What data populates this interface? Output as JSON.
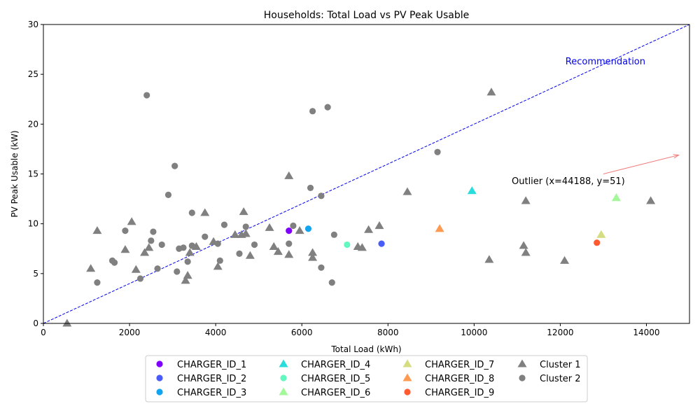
{
  "chart_data": {
    "type": "scatter",
    "title": "Households: Total Load vs PV Peak Usable",
    "xlabel": "Total Load (kWh)",
    "ylabel": "PV Peak Usable (kW)",
    "xlim": [
      0,
      15000
    ],
    "ylim": [
      0,
      30
    ],
    "x_ticks": [
      0,
      2000,
      4000,
      6000,
      8000,
      10000,
      12000,
      14000
    ],
    "y_ticks": [
      0,
      5,
      10,
      15,
      20,
      25,
      30
    ],
    "grid": false,
    "legend_position": "bottom-center",
    "reference_line": {
      "label": "Recommendation",
      "points": [
        [
          0,
          0
        ],
        [
          15000,
          30
        ]
      ],
      "color": "#0000ee"
    },
    "annotation": {
      "text": "Outlier (x=44188, y=51)",
      "anchor": [
        13000,
        15
      ],
      "arrow_to": [
        14750,
        16.9
      ],
      "color": "#f08080"
    },
    "series": [
      {
        "name": "CHARGER_ID_1",
        "marker": "circle",
        "color": "#8000ff",
        "points": [
          [
            5700,
            9.3
          ]
        ]
      },
      {
        "name": "CHARGER_ID_2",
        "marker": "circle",
        "color": "#4a5cf8",
        "points": [
          [
            7850,
            8.0
          ]
        ]
      },
      {
        "name": "CHARGER_ID_3",
        "marker": "circle",
        "color": "#12a4ee",
        "points": [
          [
            6150,
            9.5
          ]
        ]
      },
      {
        "name": "CHARGER_ID_4",
        "marker": "triangle",
        "color": "#2adddd",
        "points": [
          [
            9950,
            13.3
          ]
        ]
      },
      {
        "name": "CHARGER_ID_5",
        "marker": "circle",
        "color": "#62f8c0",
        "points": [
          [
            7050,
            7.9
          ]
        ]
      },
      {
        "name": "CHARGER_ID_6",
        "marker": "triangle",
        "color": "#a4f89a",
        "points": [
          [
            13300,
            12.6
          ]
        ]
      },
      {
        "name": "CHARGER_ID_7",
        "marker": "triangle",
        "color": "#d4dd80",
        "points": [
          [
            12950,
            8.9
          ]
        ]
      },
      {
        "name": "CHARGER_ID_8",
        "marker": "triangle",
        "color": "#ff9a52",
        "points": [
          [
            9200,
            9.5
          ]
        ]
      },
      {
        "name": "CHARGER_ID_9",
        "marker": "circle",
        "color": "#ff5a30",
        "points": [
          [
            12850,
            8.1
          ]
        ]
      },
      {
        "name": "Cluster 1",
        "marker": "triangle",
        "color": "#808080",
        "points": [
          [
            550,
            0
          ],
          [
            1100,
            5.5
          ],
          [
            1250,
            9.3
          ],
          [
            1900,
            7.4
          ],
          [
            2050,
            10.2
          ],
          [
            2150,
            5.4
          ],
          [
            2350,
            7.1
          ],
          [
            2450,
            7.6
          ],
          [
            3300,
            4.3
          ],
          [
            3350,
            4.8
          ],
          [
            3400,
            7.1
          ],
          [
            3550,
            7.7
          ],
          [
            3750,
            11.1
          ],
          [
            3950,
            8.2
          ],
          [
            4050,
            5.7
          ],
          [
            4450,
            8.9
          ],
          [
            4600,
            8.9
          ],
          [
            4650,
            11.2
          ],
          [
            4700,
            9.0
          ],
          [
            4800,
            6.8
          ],
          [
            5250,
            9.6
          ],
          [
            5350,
            7.7
          ],
          [
            5450,
            7.2
          ],
          [
            5700,
            6.9
          ],
          [
            5700,
            14.8
          ],
          [
            5950,
            9.3
          ],
          [
            6250,
            7.1
          ],
          [
            6250,
            6.6
          ],
          [
            7300,
            7.7
          ],
          [
            7400,
            7.6
          ],
          [
            7550,
            9.4
          ],
          [
            7800,
            9.8
          ],
          [
            8450,
            13.2
          ],
          [
            10350,
            6.4
          ],
          [
            10400,
            23.2
          ],
          [
            11150,
            7.8
          ],
          [
            11200,
            7.1
          ],
          [
            11200,
            12.3
          ],
          [
            12100,
            6.3
          ],
          [
            14100,
            12.3
          ]
        ]
      },
      {
        "name": "Cluster 2",
        "marker": "circle",
        "color": "#808080",
        "points": [
          [
            1250,
            4.1
          ],
          [
            1600,
            6.3
          ],
          [
            1650,
            6.1
          ],
          [
            1900,
            9.3
          ],
          [
            2250,
            4.5
          ],
          [
            2400,
            22.9
          ],
          [
            2500,
            8.3
          ],
          [
            2550,
            9.2
          ],
          [
            2650,
            5.5
          ],
          [
            2750,
            7.9
          ],
          [
            2900,
            12.9
          ],
          [
            3050,
            15.8
          ],
          [
            3100,
            5.2
          ],
          [
            3150,
            7.5
          ],
          [
            3250,
            7.6
          ],
          [
            3350,
            6.2
          ],
          [
            3450,
            7.8
          ],
          [
            3450,
            11.1
          ],
          [
            3750,
            8.7
          ],
          [
            4050,
            8.0
          ],
          [
            4100,
            6.3
          ],
          [
            4200,
            9.9
          ],
          [
            4550,
            7.0
          ],
          [
            4700,
            9.7
          ],
          [
            4900,
            7.9
          ],
          [
            5700,
            8.0
          ],
          [
            5800,
            9.8
          ],
          [
            6200,
            13.6
          ],
          [
            6250,
            21.3
          ],
          [
            6450,
            5.6
          ],
          [
            6450,
            12.8
          ],
          [
            6600,
            21.7
          ],
          [
            6700,
            4.1
          ],
          [
            6750,
            8.9
          ],
          [
            9150,
            17.2
          ]
        ]
      }
    ]
  }
}
